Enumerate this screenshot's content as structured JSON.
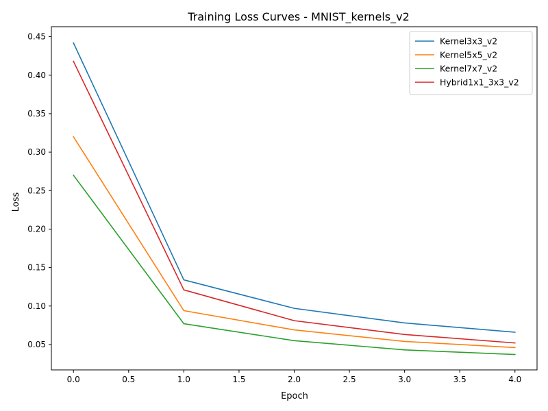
{
  "chart_data": {
    "type": "line",
    "title": "Training Loss Curves - MNIST_kernels_v2",
    "xlabel": "Epoch",
    "ylabel": "Loss",
    "x": [
      0,
      1,
      2,
      3,
      4
    ],
    "xlim": [
      -0.2,
      4.2
    ],
    "ylim": [
      0.017,
      0.463
    ],
    "xticks": [
      "0.0",
      "0.5",
      "1.0",
      "1.5",
      "2.0",
      "2.5",
      "3.0",
      "3.5",
      "4.0"
    ],
    "yticks": [
      "0.05",
      "0.10",
      "0.15",
      "0.20",
      "0.25",
      "0.30",
      "0.35",
      "0.40",
      "0.45"
    ],
    "grid": false,
    "legend_position": "top-right",
    "series": [
      {
        "name": "Kernel3x3_v2",
        "color": "#1f77b4",
        "values": [
          0.442,
          0.134,
          0.097,
          0.078,
          0.066
        ]
      },
      {
        "name": "Kernel5x5_v2",
        "color": "#ff7f0e",
        "values": [
          0.32,
          0.094,
          0.069,
          0.054,
          0.046
        ]
      },
      {
        "name": "Kernel7x7_v2",
        "color": "#2ca02c",
        "values": [
          0.27,
          0.077,
          0.055,
          0.043,
          0.037
        ]
      },
      {
        "name": "Hybrid1x1_3x3_v2",
        "color": "#d62728",
        "values": [
          0.418,
          0.121,
          0.081,
          0.063,
          0.052
        ]
      }
    ]
  }
}
